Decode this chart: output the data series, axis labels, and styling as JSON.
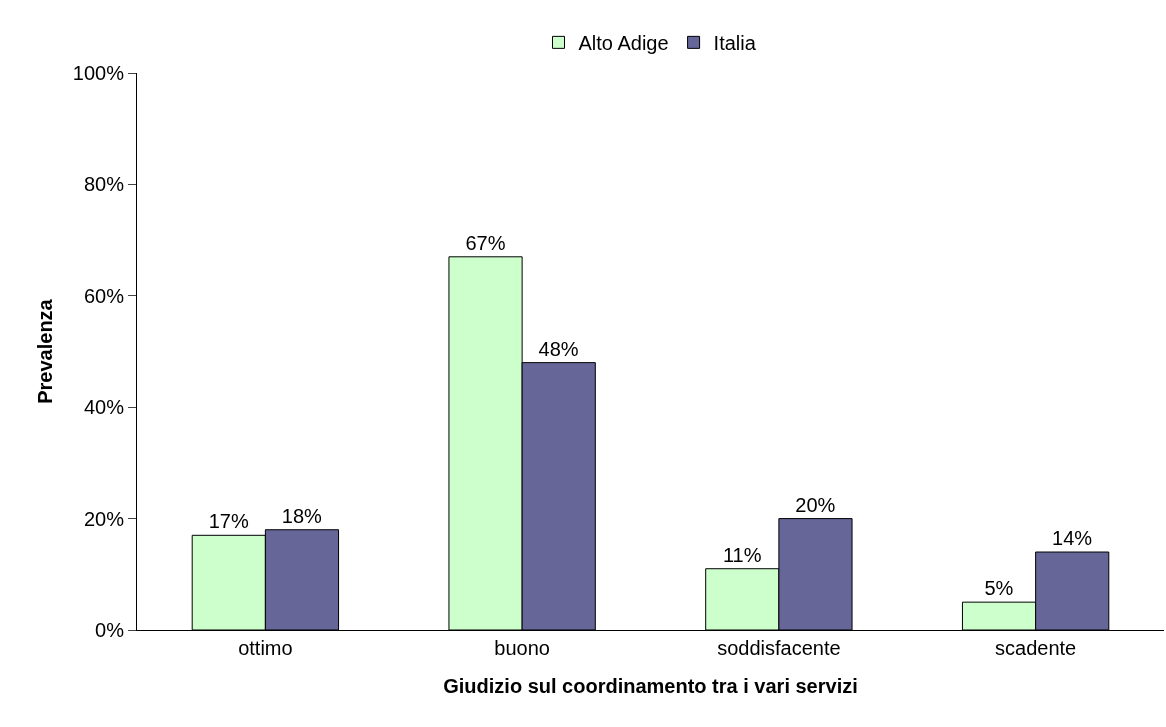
{
  "chart_data": {
    "type": "bar",
    "xlabel": "Giudizio sul coordinamento tra i vari servizi",
    "ylabel": "Prevalenza",
    "categories": [
      "ottimo",
      "buono",
      "soddisfacente",
      "scadente"
    ],
    "series": [
      {
        "name": "Alto Adige",
        "color": "#ccffcc",
        "values": [
          17,
          67,
          11,
          5
        ],
        "value_labels": [
          "17%",
          "67%",
          "11%",
          "5%"
        ]
      },
      {
        "name": "Italia",
        "color": "#666699",
        "values": [
          18,
          48,
          20,
          14
        ],
        "value_labels": [
          "18%",
          "48%",
          "20%",
          "14%"
        ]
      }
    ],
    "ylim": [
      0,
      100
    ],
    "yticks": [
      {
        "value": 0,
        "label": "0%"
      },
      {
        "value": 20,
        "label": "20%"
      },
      {
        "value": 40,
        "label": "40%"
      },
      {
        "value": 60,
        "label": "60%"
      },
      {
        "value": 80,
        "label": "80%"
      },
      {
        "value": 100,
        "label": "100%"
      }
    ],
    "grid": false,
    "legend": "top"
  }
}
